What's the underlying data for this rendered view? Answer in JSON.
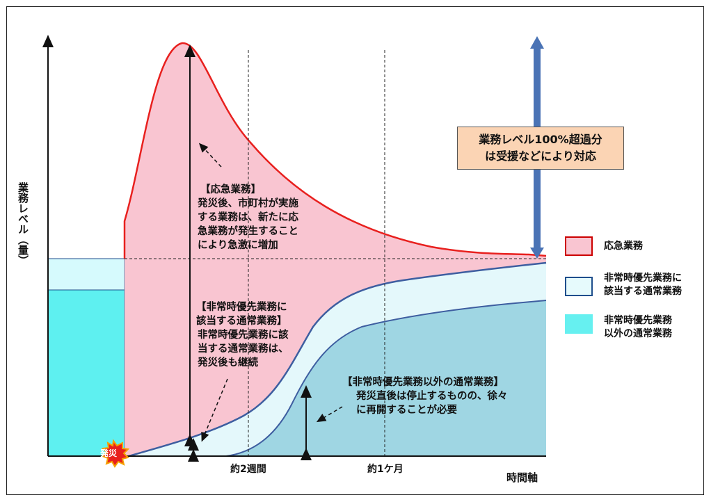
{
  "axes": {
    "y_label": "業務レベル（量）",
    "x_label": "時間軸",
    "x_ticks": [
      "約2週間",
      "約1ケ月"
    ]
  },
  "markers": {
    "disaster": "発災"
  },
  "annotations": {
    "emergency_title": "【応急業務】",
    "emergency_body": "発災後、市町村が実施\nする業務は、新たに応\n急業務が発生すること\nにより急激に増加",
    "priority_title": "【非常時優先業務に\n該当する通常業務】",
    "priority_body": "非常時優先業務に該\n当する通常業務は、\n発災後も継続",
    "other_title": "【非常時優先業務以外の通常業務】",
    "other_body": "発災直後は停止するものの、徐々\nに再開することが必要",
    "excess": "業務レベル100%超過分\nは受援などにより対応"
  },
  "legend": [
    {
      "label": "応急業務",
      "color": "#f9c5d1",
      "border": "#cc0000"
    },
    {
      "label": "非常時優先業務に\n該当する通常業務",
      "color": "#e6fafc",
      "border": "#1f4e8c"
    },
    {
      "label": "非常時優先業務\n以外の通常業務",
      "color": "#66f0f0",
      "border": "#66f0f0"
    }
  ],
  "colors": {
    "emergency_fill": "#f9c5d1",
    "emergency_line": "#e8201e",
    "priority_fill": "#e4f8fb",
    "other_fill": "#9fd6e3",
    "baseline_fill": "#5ef0f0",
    "curve_line": "#3e5ea0",
    "excess_arrow": "#4a73b5",
    "excess_box": "#fbd4b4"
  }
}
